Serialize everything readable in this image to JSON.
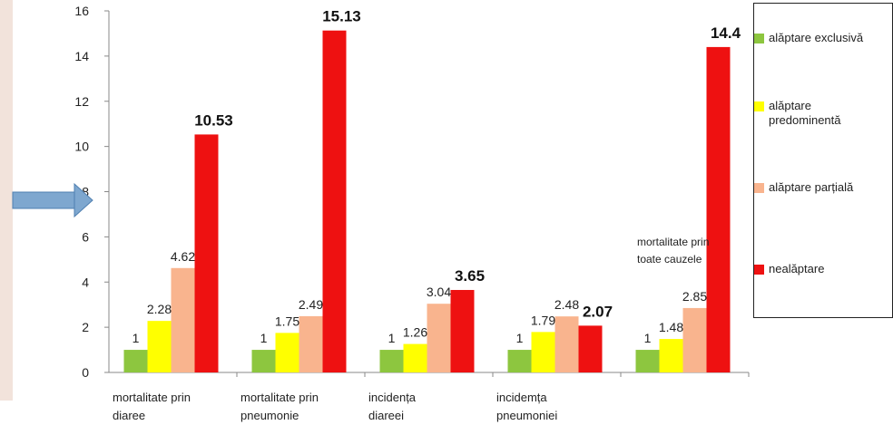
{
  "chart_data": {
    "type": "bar",
    "categories": [
      "mortalitate prin diaree",
      "mortalitate prin pneumonie",
      "incidența diareei",
      "incidemța pneumoniei",
      ""
    ],
    "series": [
      {
        "name": "alăptare exclusivă",
        "values": [
          1,
          1,
          1,
          1,
          1
        ],
        "color": "#8dc63f"
      },
      {
        "name": "alăptare predominentă",
        "values": [
          2.28,
          1.75,
          1.26,
          1.79,
          1.48
        ],
        "color": "#ffff00"
      },
      {
        "name": "alăptare parțială",
        "values": [
          4.62,
          2.49,
          3.04,
          2.48,
          2.85
        ],
        "color": "#f9b48e"
      },
      {
        "name": "nealăptare",
        "values": [
          10.53,
          15.13,
          3.65,
          2.07,
          14.4
        ],
        "color": "#ee1111"
      }
    ],
    "data_labels": [
      [
        "1",
        "2.28",
        "4.62",
        "10.53"
      ],
      [
        "1",
        "1.75",
        "2.49",
        "15.13"
      ],
      [
        "1",
        "1.26",
        "3.04",
        "3.65"
      ],
      [
        "1",
        "1.79",
        "2.48",
        "2.07"
      ],
      [
        "1",
        "1.48",
        "2.85",
        "14.4"
      ]
    ],
    "ylim": [
      0,
      16
    ],
    "yticks": [
      0,
      2,
      4,
      6,
      8,
      10,
      12,
      14,
      16
    ],
    "annotation": "mortalitate prin toate cauzele",
    "legend_placement": "right",
    "grid": false
  }
}
